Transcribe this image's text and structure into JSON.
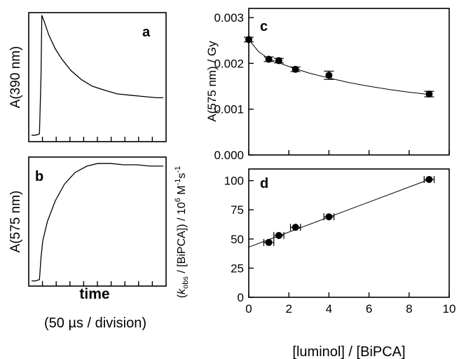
{
  "chart_data": [
    {
      "panel": "a",
      "type": "line",
      "ylabel": "A(390 nm)",
      "x_divisions": 10,
      "x": [
        0,
        0.3,
        0.6,
        0.72,
        0.78,
        1.0,
        1.3,
        1.8,
        2.3,
        3.0,
        3.8,
        4.6,
        5.5,
        6.5,
        7.5,
        8.5,
        9.5,
        10
      ],
      "y": [
        0.05,
        0.05,
        0.06,
        0.5,
        0.98,
        0.92,
        0.83,
        0.72,
        0.64,
        0.55,
        0.48,
        0.43,
        0.4,
        0.37,
        0.36,
        0.35,
        0.34,
        0.34
      ]
    },
    {
      "panel": "b",
      "type": "line",
      "ylabel": "A(575 nm)",
      "xlabel": "time",
      "x_note": "(50 µs / division)",
      "x_divisions": 10,
      "x": [
        0,
        0.3,
        0.6,
        0.72,
        0.85,
        1.2,
        1.8,
        2.5,
        3.3,
        4.2,
        5.0,
        6.0,
        7.0,
        8.0,
        9.0,
        10
      ],
      "y": [
        0.04,
        0.04,
        0.05,
        0.22,
        0.35,
        0.5,
        0.66,
        0.79,
        0.88,
        0.93,
        0.95,
        0.95,
        0.94,
        0.94,
        0.93,
        0.93
      ]
    },
    {
      "panel": "c",
      "type": "scatter",
      "ylabel": "A(575 nm) / Gy",
      "xlim": [
        0,
        10
      ],
      "ylim": [
        0,
        0.0032
      ],
      "yticks": [
        "0.000",
        "0.001",
        "0.002",
        "0.003"
      ],
      "x": [
        0,
        1,
        1.5,
        2.33,
        4,
        9
      ],
      "y": [
        0.00252,
        0.00209,
        0.00206,
        0.00187,
        0.00174,
        0.00133
      ],
      "yerr": [
        5e-05,
        5e-05,
        5e-05,
        5e-05,
        9e-05,
        6e-05
      ],
      "fit": {
        "x": [
          0,
          0.5,
          1,
          1.5,
          2,
          2.5,
          3,
          4,
          5,
          6,
          7,
          8,
          9
        ],
        "y": [
          0.00252,
          0.00225,
          0.0021,
          0.00201,
          0.00193,
          0.00186,
          0.00179,
          0.00168,
          0.00158,
          0.0015,
          0.00143,
          0.00137,
          0.00132
        ]
      }
    },
    {
      "panel": "d",
      "type": "scatter",
      "xlabel": "[luminol] / [BiPCA]",
      "ylabel": "(k_obs / [BiPCA]) / 10^6 M^-1 s^-1",
      "xlim": [
        0,
        10
      ],
      "ylim": [
        0,
        110
      ],
      "xticks": [
        "0",
        "2",
        "4",
        "6",
        "8",
        "10"
      ],
      "yticks": [
        "0",
        "25",
        "50",
        "75",
        "100"
      ],
      "x": [
        1,
        1.5,
        2.33,
        4,
        9
      ],
      "y": [
        47,
        53,
        60,
        69,
        101
      ],
      "xerr": [
        0.25,
        0.25,
        0.25,
        0.25,
        0.25
      ],
      "fit": {
        "x": [
          0,
          9
        ],
        "y": [
          43,
          101
        ]
      }
    }
  ],
  "labels": {
    "a": "a",
    "b": "b",
    "c": "c",
    "d": "d",
    "a_ylabel": "A(390 nm)",
    "b_ylabel": "A(575 nm)",
    "time": "time",
    "time_note": "(50 µs / division)",
    "c_ylabel": "A(575 nm) / Gy",
    "d_xlabel": "[luminol] / [BiPCA]",
    "d_ylabel_k": "k",
    "d_ylabel_obs": "obs",
    "d_ylabel_rest": " / [BiPCA]) / 10",
    "d_ylabel_exp6": "6",
    "d_ylabel_unit": " M",
    "d_ylabel_exp1": "-1",
    "d_ylabel_s": "s",
    "d_ylabel_exp2": "-1",
    "d_ylabel_open": "("
  }
}
